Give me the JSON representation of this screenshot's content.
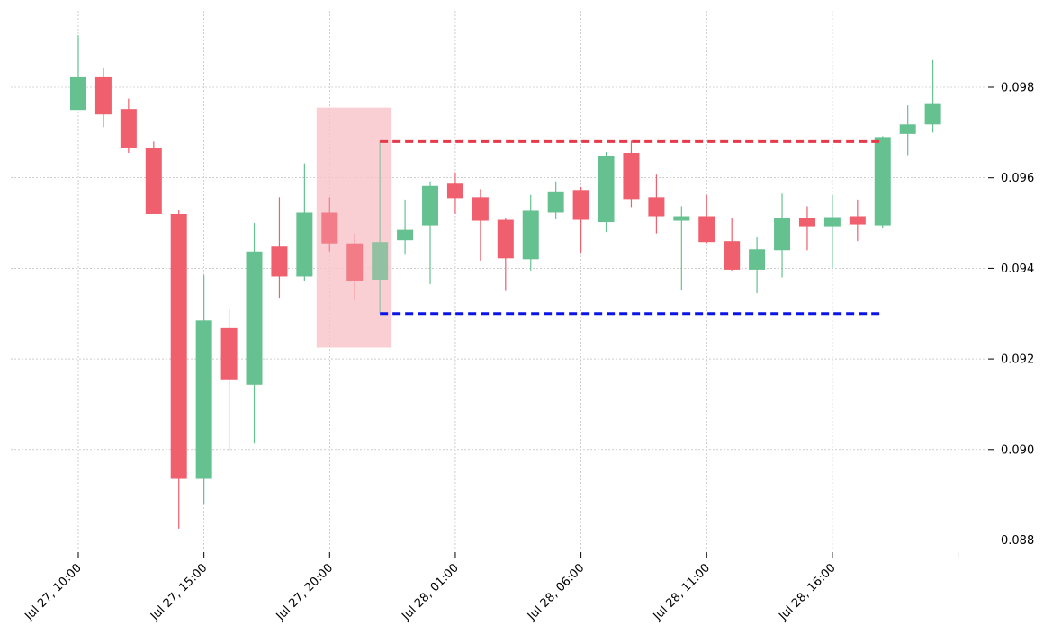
{
  "chart_data": {
    "type": "candlestick",
    "title": "",
    "xlabel": "",
    "ylabel": "",
    "ylim": [
      0.0878,
      0.0998
    ],
    "x_tick_labels": [
      {
        "label": "Jul 27, 10:00",
        "index": 0
      },
      {
        "label": "Jul 27, 15:00",
        "index": 5
      },
      {
        "label": "Jul 27, 20:00",
        "index": 10
      },
      {
        "label": "Jul 28, 01:00",
        "index": 15
      },
      {
        "label": "Jul 28, 06:00",
        "index": 20
      },
      {
        "label": "Jul 28, 11:00",
        "index": 25
      },
      {
        "label": "Jul 28, 16:00",
        "index": 30
      },
      {
        "label": "",
        "index": 35
      }
    ],
    "y_ticks": [
      "0.088",
      "0.090",
      "0.092",
      "0.094",
      "0.096",
      "0.098"
    ],
    "grid": true,
    "colors": {
      "up": "#66c190",
      "down": "#ef5f6d",
      "highlight": "#f7c5cb",
      "resistance": "#e8394a",
      "support": "#0a14e6"
    },
    "candles": [
      {
        "o": 0.0975,
        "h": 0.09915,
        "l": 0.0975,
        "c": 0.09822
      },
      {
        "o": 0.09822,
        "h": 0.09842,
        "l": 0.09712,
        "c": 0.0974
      },
      {
        "o": 0.09752,
        "h": 0.09775,
        "l": 0.09655,
        "c": 0.09665
      },
      {
        "o": 0.09665,
        "h": 0.0968,
        "l": 0.0952,
        "c": 0.0952
      },
      {
        "o": 0.0952,
        "h": 0.0953,
        "l": 0.08825,
        "c": 0.08935
      },
      {
        "o": 0.08935,
        "h": 0.09385,
        "l": 0.0888,
        "c": 0.09285
      },
      {
        "o": 0.09268,
        "h": 0.0931,
        "l": 0.08998,
        "c": 0.09155
      },
      {
        "o": 0.09143,
        "h": 0.095,
        "l": 0.09013,
        "c": 0.09437
      },
      {
        "o": 0.09448,
        "h": 0.09557,
        "l": 0.09335,
        "c": 0.09382
      },
      {
        "o": 0.09382,
        "h": 0.09632,
        "l": 0.09372,
        "c": 0.09523
      },
      {
        "o": 0.09523,
        "h": 0.09557,
        "l": 0.09437,
        "c": 0.09455
      },
      {
        "o": 0.09455,
        "h": 0.09477,
        "l": 0.0933,
        "c": 0.09373
      },
      {
        "o": 0.09375,
        "h": 0.09682,
        "l": 0.093,
        "c": 0.09458
      },
      {
        "o": 0.09462,
        "h": 0.09552,
        "l": 0.0943,
        "c": 0.09485
      },
      {
        "o": 0.09495,
        "h": 0.09592,
        "l": 0.09365,
        "c": 0.09582
      },
      {
        "o": 0.09587,
        "h": 0.09612,
        "l": 0.0952,
        "c": 0.09555
      },
      {
        "o": 0.09557,
        "h": 0.09575,
        "l": 0.09417,
        "c": 0.09505
      },
      {
        "o": 0.09507,
        "h": 0.09512,
        "l": 0.0935,
        "c": 0.09422
      },
      {
        "o": 0.0942,
        "h": 0.09562,
        "l": 0.09395,
        "c": 0.09527
      },
      {
        "o": 0.09523,
        "h": 0.09592,
        "l": 0.0951,
        "c": 0.0957
      },
      {
        "o": 0.09573,
        "h": 0.0958,
        "l": 0.09435,
        "c": 0.09507
      },
      {
        "o": 0.09502,
        "h": 0.09657,
        "l": 0.0948,
        "c": 0.09648
      },
      {
        "o": 0.09655,
        "h": 0.09682,
        "l": 0.09535,
        "c": 0.09553
      },
      {
        "o": 0.09557,
        "h": 0.09607,
        "l": 0.09477,
        "c": 0.09515
      },
      {
        "o": 0.09505,
        "h": 0.09537,
        "l": 0.09353,
        "c": 0.09515
      },
      {
        "o": 0.09515,
        "h": 0.09562,
        "l": 0.09455,
        "c": 0.09458
      },
      {
        "o": 0.0946,
        "h": 0.09512,
        "l": 0.09395,
        "c": 0.09397
      },
      {
        "o": 0.09397,
        "h": 0.0947,
        "l": 0.09345,
        "c": 0.09442
      },
      {
        "o": 0.0944,
        "h": 0.09565,
        "l": 0.0938,
        "c": 0.09512
      },
      {
        "o": 0.09512,
        "h": 0.09537,
        "l": 0.0944,
        "c": 0.09493
      },
      {
        "o": 0.09493,
        "h": 0.09562,
        "l": 0.094,
        "c": 0.09513
      },
      {
        "o": 0.09515,
        "h": 0.09552,
        "l": 0.0946,
        "c": 0.09497
      },
      {
        "o": 0.09495,
        "h": 0.09692,
        "l": 0.0949,
        "c": 0.0969
      },
      {
        "o": 0.09697,
        "h": 0.0976,
        "l": 0.0965,
        "c": 0.09718
      },
      {
        "o": 0.09718,
        "h": 0.0986,
        "l": 0.097,
        "c": 0.09763
      }
    ],
    "highlight_zone": {
      "index_start": 10,
      "index_end": 12,
      "y_low": 0.09225,
      "y_high": 0.09755
    },
    "resistance_line": {
      "y": 0.0968,
      "index_start": 12,
      "index_end": 32
    },
    "support_line": {
      "y": 0.093,
      "index_start": 12,
      "index_end": 32
    }
  }
}
